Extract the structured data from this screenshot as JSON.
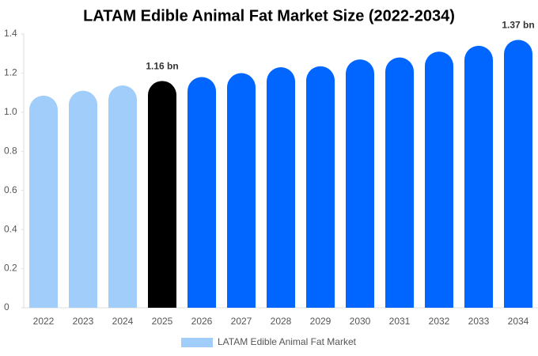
{
  "chart_data": {
    "type": "bar",
    "title": "LATAM Edible Animal Fat Market Size (2022-2034)",
    "categories": [
      "2022",
      "2023",
      "2024",
      "2025",
      "2026",
      "2027",
      "2028",
      "2029",
      "2030",
      "2031",
      "2032",
      "2033",
      "2034"
    ],
    "series": [
      {
        "name": "LATAM Edible Animal Fat Market",
        "color": "#a0cdfa",
        "values": [
          1.085,
          1.11,
          1.137,
          1.16,
          1.18,
          1.2,
          1.23,
          1.235,
          1.27,
          1.28,
          1.31,
          1.34,
          1.37
        ],
        "value_labels": [
          null,
          null,
          null,
          "1.16 bn",
          null,
          null,
          null,
          null,
          null,
          null,
          null,
          null,
          "1.37 bn"
        ]
      }
    ],
    "bar_colors": [
      "#a0cdfa",
      "#a0cdfa",
      "#a0cdfa",
      "#000000",
      "#0066ff",
      "#0066ff",
      "#0066ff",
      "#0066ff",
      "#0066ff",
      "#0066ff",
      "#0066ff",
      "#0066ff",
      "#0066ff"
    ],
    "ylim": [
      0,
      1.4
    ],
    "yticks": [
      0,
      0.2,
      0.4,
      0.6,
      0.8,
      {
        "value": 1,
        "label": "1.0"
      },
      1.2,
      1.4
    ],
    "grid": false
  }
}
